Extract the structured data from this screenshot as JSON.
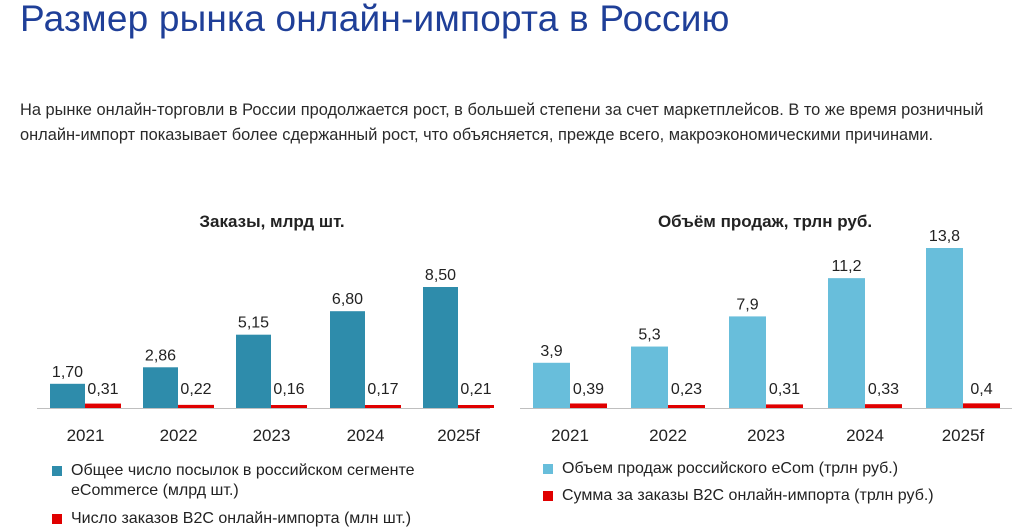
{
  "page": {
    "title": "Размер рынка онлайн-импорта в Россию",
    "subtitle": "На рынке онлайн-торговли в России продолжается рост, в большей степени за счет маркетплейсов.  В то же время розничный онлайн-импорт показывает более сдержанный рост, что объясняется, прежде всего, макроэкономическими причинами."
  },
  "colors": {
    "orders_primary": "#2e8cab",
    "sales_primary": "#68bedb",
    "secondary": "#e00000",
    "title": "#1f3f98"
  },
  "chart_data": [
    {
      "type": "bar",
      "title": "Заказы, млрд шт.",
      "categories": [
        "2021",
        "2022",
        "2023",
        "2024",
        "2025f"
      ],
      "series": [
        {
          "name": "Общее число посылок в российском сегменте eCommerce (млрд шт.)",
          "values": [
            1.7,
            2.86,
            5.15,
            6.8,
            8.5
          ],
          "labels": [
            "1,70",
            "2,86",
            "5,15",
            "6,80",
            "8,50"
          ]
        },
        {
          "name": "Число заказов B2C онлайн-импорта (млн шт.)",
          "values": [
            0.31,
            0.22,
            0.16,
            0.17,
            0.21
          ],
          "labels": [
            "0,31",
            "0,22",
            "0,16",
            "0,17",
            "0,21"
          ]
        }
      ],
      "xlabel": "",
      "ylabel": "",
      "ylim": [
        0,
        8.5
      ]
    },
    {
      "type": "bar",
      "title": "Объём продаж, трлн руб.",
      "categories": [
        "2021",
        "2022",
        "2023",
        "2024",
        "2025f"
      ],
      "series": [
        {
          "name": "Объем продаж российского eCom (трлн руб.)",
          "values": [
            3.9,
            5.3,
            7.9,
            11.2,
            13.8
          ],
          "labels": [
            "3,9",
            "5,3",
            "7,9",
            "11,2",
            "13,8"
          ]
        },
        {
          "name": "Сумма за заказы B2C онлайн-импорта (трлн руб.)",
          "values": [
            0.39,
            0.23,
            0.31,
            0.33,
            0.4
          ],
          "labels": [
            "0,39",
            "0,23",
            "0,31",
            "0,33",
            "0,4"
          ]
        }
      ],
      "xlabel": "",
      "ylabel": "",
      "ylim": [
        0,
        13.8
      ]
    }
  ]
}
